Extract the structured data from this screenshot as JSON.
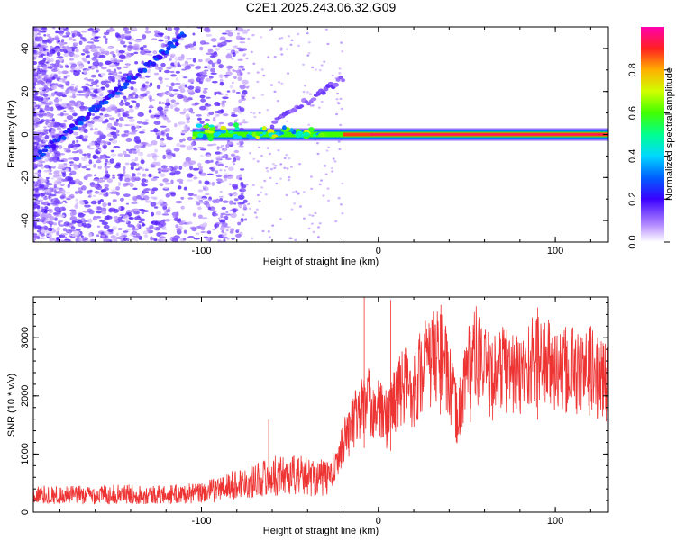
{
  "chart_data": [
    {
      "type": "heatmap",
      "title": "C2E1.2025.243.06.32.G09",
      "xlabel": "Height of straight line (km)",
      "ylabel": "Frequency (Hz)",
      "xlim": [
        -195,
        130
      ],
      "ylim": [
        -50,
        50
      ],
      "xticks": [
        -100,
        0,
        100
      ],
      "xtick_labels": [
        "-100",
        "0",
        "100"
      ],
      "yticks": [
        -40,
        -20,
        0,
        20,
        40
      ],
      "ytick_labels": [
        "-40",
        "-20",
        "0",
        "20",
        "40"
      ],
      "grid": false,
      "features": [
        {
          "name": "diagonal-trace",
          "x": [
            -195,
            -110
          ],
          "y": [
            -12,
            46
          ]
        },
        {
          "name": "weak-trace",
          "x": [
            -60,
            -20
          ],
          "y": [
            5,
            26
          ]
        },
        {
          "name": "carrier-line",
          "x": [
            -105,
            130
          ],
          "y": [
            0,
            0
          ],
          "peak_amplitude": 0.95
        }
      ],
      "colorbar": {
        "label": "Normalized spectral amplitude",
        "range": [
          0,
          1
        ],
        "ticks": [
          0.0,
          0.2,
          0.4,
          0.6,
          0.8
        ],
        "tick_labels": [
          "0.0",
          "0.2",
          "0.4",
          "0.6",
          "0.8"
        ]
      }
    },
    {
      "type": "line",
      "xlabel": "Height of straight line (km)",
      "ylabel": "SNR (10 * v/v)",
      "xlim": [
        -195,
        130
      ],
      "ylim": [
        0,
        3700
      ],
      "xticks": [
        -100,
        0,
        100
      ],
      "xtick_labels": [
        "-100",
        "0",
        "100"
      ],
      "yticks": [
        0,
        1000,
        2000,
        3000
      ],
      "ytick_labels": [
        "0",
        "1000",
        "2000",
        "3000"
      ],
      "grid": false,
      "series": [
        {
          "name": "SNR",
          "color": "#ee3333",
          "x": [
            -195,
            -180,
            -160,
            -140,
            -120,
            -100,
            -90,
            -80,
            -70,
            -60,
            -50,
            -40,
            -30,
            -25,
            -20,
            -15,
            -10,
            -5,
            0,
            5,
            10,
            15,
            20,
            25,
            30,
            35,
            40,
            45,
            50,
            55,
            60,
            65,
            70,
            75,
            80,
            85,
            90,
            95,
            100,
            105,
            110,
            115,
            120,
            125,
            130
          ],
          "y": [
            300,
            290,
            300,
            310,
            300,
            330,
            400,
            480,
            560,
            620,
            650,
            620,
            580,
            700,
            1200,
            1500,
            1800,
            1900,
            1750,
            1600,
            2000,
            2200,
            2100,
            2500,
            2600,
            2800,
            2200,
            1600,
            2500,
            2700,
            2400,
            2300,
            2500,
            2450,
            2300,
            2550,
            2650,
            2550,
            2450,
            2400,
            2500,
            2350,
            2450,
            2250,
            2300
          ]
        }
      ],
      "peaks": [
        {
          "x": -8,
          "y": 3700
        },
        {
          "x": 7,
          "y": 3650
        },
        {
          "x": 35,
          "y": 3400
        },
        {
          "x": 52,
          "y": 3100
        },
        {
          "x": 90,
          "y": 3520
        },
        {
          "x": -62,
          "y": 1590
        }
      ]
    }
  ]
}
